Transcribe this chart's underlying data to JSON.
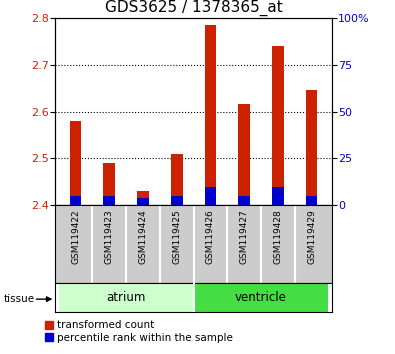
{
  "title": "GDS3625 / 1378365_at",
  "samples": [
    "GSM119422",
    "GSM119423",
    "GSM119424",
    "GSM119425",
    "GSM119426",
    "GSM119427",
    "GSM119428",
    "GSM119429"
  ],
  "red_values": [
    2.58,
    2.49,
    2.43,
    2.51,
    2.785,
    2.615,
    2.74,
    2.645
  ],
  "blue_right_pct": [
    5,
    5,
    4,
    5,
    10,
    5,
    10,
    5
  ],
  "ylim_left": [
    2.4,
    2.8
  ],
  "ylim_right": [
    0,
    100
  ],
  "yticks_left": [
    2.4,
    2.5,
    2.6,
    2.7,
    2.8
  ],
  "yticks_right": [
    0,
    25,
    50,
    75,
    100
  ],
  "ytick_labels_right": [
    "0",
    "25",
    "50",
    "75",
    "100%"
  ],
  "base": 2.4,
  "groups": [
    {
      "label": "atrium",
      "start": 0,
      "end": 4,
      "color": "#ccffcc"
    },
    {
      "label": "ventricle",
      "start": 4,
      "end": 8,
      "color": "#44dd44"
    }
  ],
  "tissue_label": "tissue",
  "legend": [
    {
      "label": "transformed count",
      "color": "#cc2200"
    },
    {
      "label": "percentile rank within the sample",
      "color": "#0000cc"
    }
  ],
  "bar_width": 0.35,
  "red_color": "#cc2200",
  "blue_color": "#0000cc",
  "grid_color": "#000000",
  "bg_color": "#ffffff",
  "tick_label_color_left": "#cc2200",
  "tick_label_color_right": "#0000cc",
  "title_fontsize": 11,
  "tick_fontsize": 8,
  "sample_fontsize": 6.5,
  "tissue_fontsize": 8.5,
  "legend_fontsize": 7.5
}
